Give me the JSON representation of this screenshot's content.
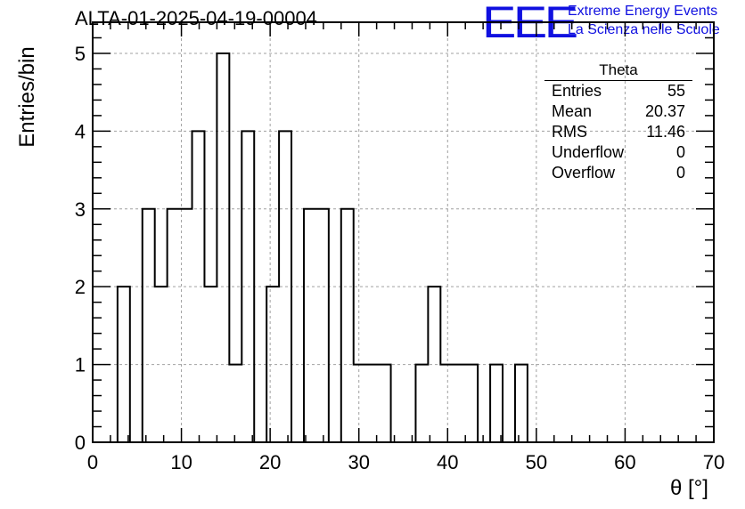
{
  "header": {
    "title": "ALTA-01-2025-04-19-00004",
    "logo_text": "EEE",
    "logo_line1": "Extreme Energy Events",
    "logo_line2": "La Scienza nelle Scuole"
  },
  "stats_box": {
    "title": "Theta",
    "rows": [
      {
        "label": "Entries",
        "value": "55"
      },
      {
        "label": "Mean",
        "value": "20.37"
      },
      {
        "label": "RMS",
        "value": "11.46"
      },
      {
        "label": "Underflow",
        "value": "0"
      },
      {
        "label": "Overflow",
        "value": "0"
      }
    ]
  },
  "colors": {
    "line": "#000000",
    "grid": "#a0a0a0",
    "logo": "#1010e0"
  },
  "chart_data": {
    "type": "bar",
    "histogram": "step",
    "xlabel": "θ [°]",
    "ylabel": "Entries/bin",
    "xlim": [
      0,
      70
    ],
    "ylim": [
      0,
      5.4
    ],
    "xticks": [
      "0",
      "10",
      "20",
      "30",
      "40",
      "50",
      "60",
      "70"
    ],
    "yticks": [
      "0",
      "1",
      "2",
      "3",
      "4",
      "5"
    ],
    "grid": true,
    "bin_width": 1.4,
    "bin_edges_start": 0,
    "values": [
      0,
      0,
      2,
      0,
      3,
      2,
      3,
      3,
      4,
      2,
      5,
      1,
      4,
      0,
      2,
      4,
      0,
      3,
      3,
      0,
      3,
      1,
      1,
      1,
      0,
      0,
      1,
      2,
      1,
      1,
      1,
      0,
      1,
      0,
      1,
      0,
      0,
      0,
      0,
      0,
      0,
      0,
      0,
      0,
      0,
      0,
      0,
      0,
      0,
      0
    ]
  }
}
